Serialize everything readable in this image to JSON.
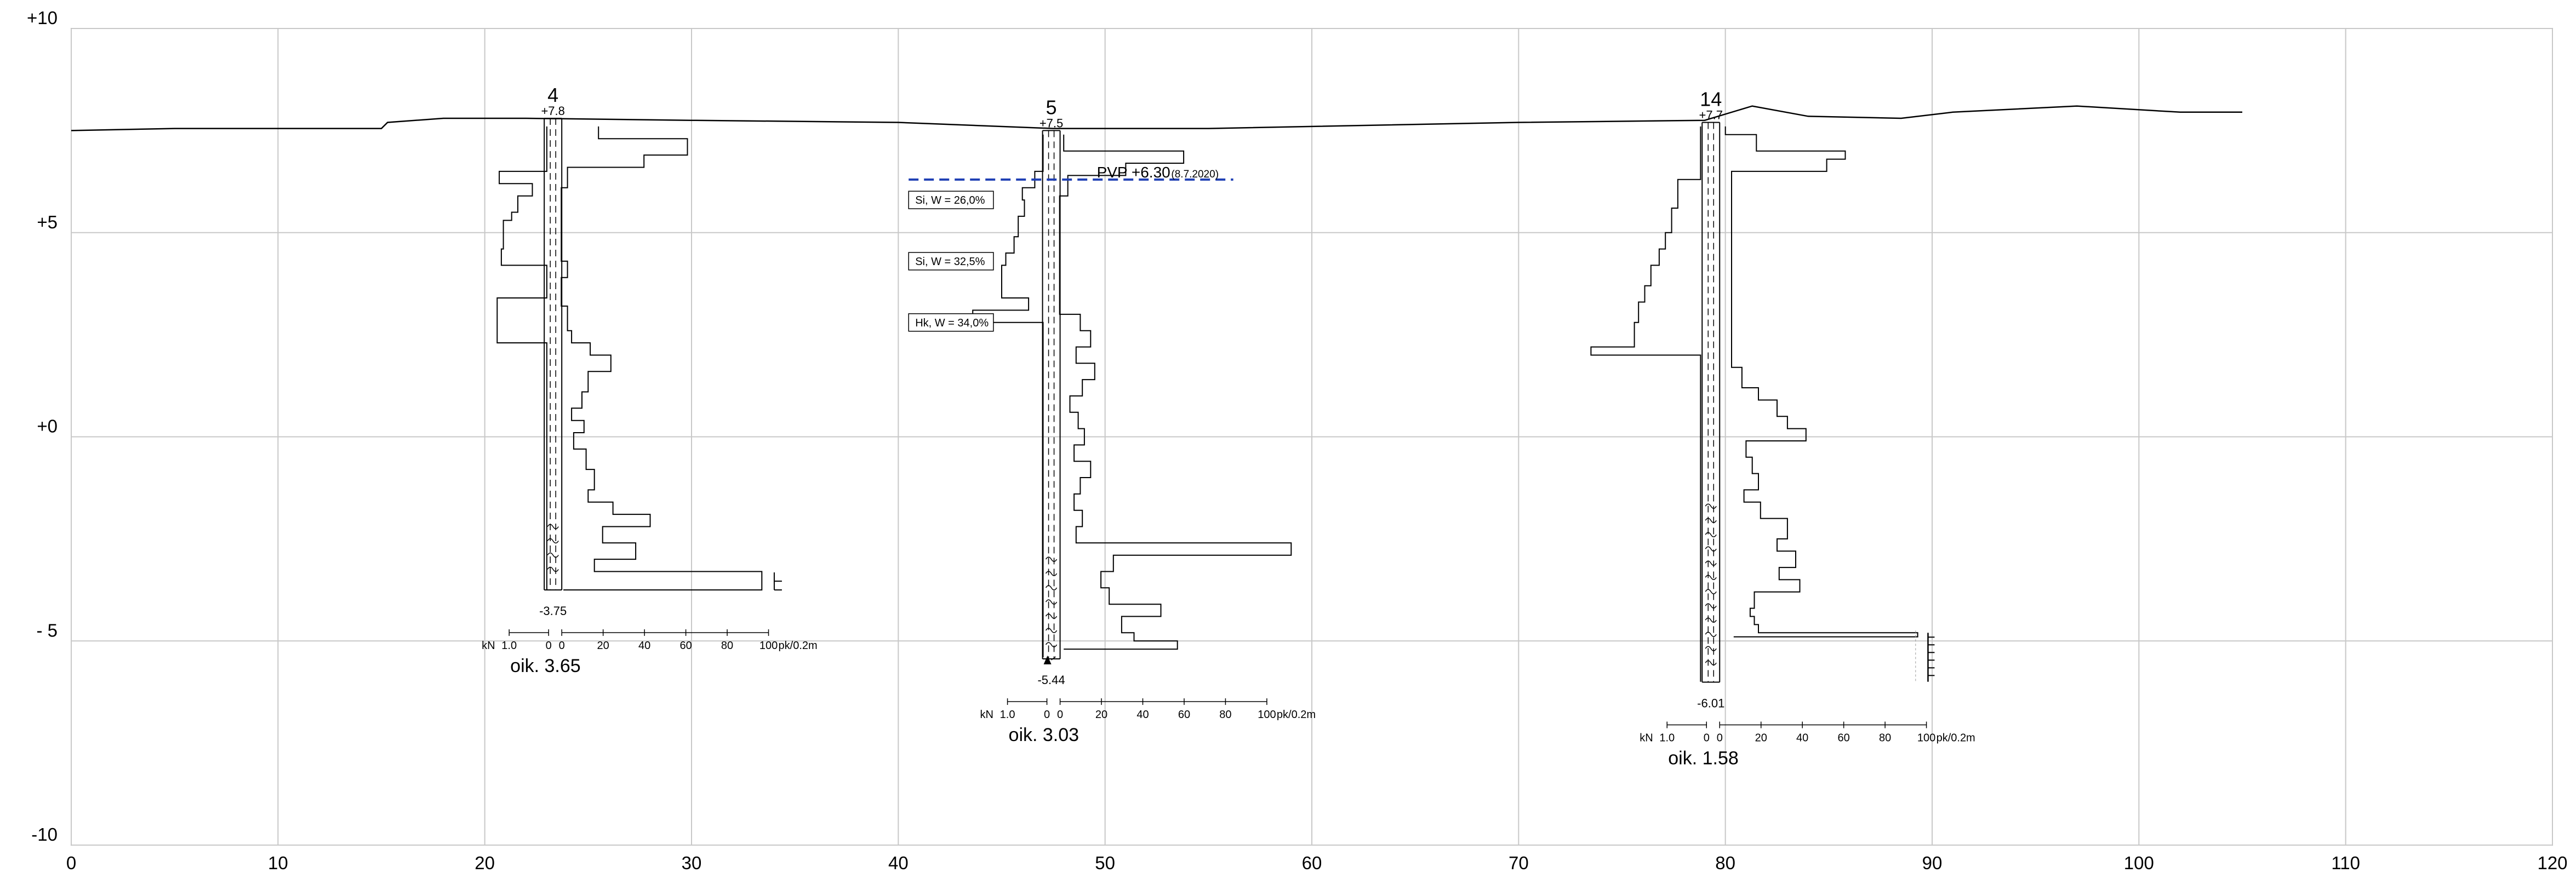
{
  "y_axis": {
    "min": -10,
    "max": 10,
    "ticks": [
      {
        "value": 10,
        "label": "+10"
      },
      {
        "value": 5,
        "label": "+5"
      },
      {
        "value": 0,
        "label": "+0"
      },
      {
        "value": -5,
        "label": "- 5"
      },
      {
        "value": -10,
        "label": "-10"
      }
    ]
  },
  "x_axis": {
    "min": 0,
    "max": 120,
    "ticks": [
      {
        "value": 0,
        "label": "0"
      },
      {
        "value": 10,
        "label": "10"
      },
      {
        "value": 20,
        "label": "20"
      },
      {
        "value": 30,
        "label": "30"
      },
      {
        "value": 40,
        "label": "40"
      },
      {
        "value": 50,
        "label": "50"
      },
      {
        "value": 60,
        "label": "60"
      },
      {
        "value": 70,
        "label": "70"
      },
      {
        "value": 80,
        "label": "80"
      },
      {
        "value": 90,
        "label": "90"
      },
      {
        "value": 100,
        "label": "100"
      },
      {
        "value": 110,
        "label": "110"
      },
      {
        "value": 120,
        "label": "120"
      }
    ]
  },
  "ground_surface": [
    [
      0,
      7.5
    ],
    [
      5,
      7.55
    ],
    [
      10,
      7.55
    ],
    [
      15,
      7.55
    ],
    [
      15.3,
      7.7
    ],
    [
      18,
      7.8
    ],
    [
      22,
      7.8
    ],
    [
      30,
      7.75
    ],
    [
      40,
      7.7
    ],
    [
      47.5,
      7.55
    ],
    [
      55,
      7.55
    ],
    [
      70,
      7.7
    ],
    [
      79,
      7.75
    ],
    [
      81.3,
      8.1
    ],
    [
      84,
      7.85
    ],
    [
      88.5,
      7.8
    ],
    [
      91,
      7.95
    ],
    [
      97,
      8.1
    ],
    [
      102,
      7.95
    ],
    [
      105,
      7.95
    ]
  ],
  "groundwater": {
    "label": "PVP +6.30",
    "date": "(8.7.2020)",
    "level": 6.3,
    "x_from": 40.5,
    "x_to": 56.2
  },
  "boreholes": [
    {
      "id": "4",
      "x": 23.3,
      "top": 7.8,
      "top_label": "+7.8",
      "bottom": -3.75,
      "bottom_label": "-3.75",
      "note": "oik. 3.65",
      "wavy_from": -2.2,
      "end_marker": "stop",
      "weight_profile": [
        [
          7.6,
          23.0
        ],
        [
          6.5,
          23.0
        ],
        [
          6.5,
          20.7
        ],
        [
          6.2,
          20.7
        ],
        [
          6.2,
          22.3
        ],
        [
          5.9,
          22.3
        ],
        [
          5.9,
          21.6
        ],
        [
          5.5,
          21.6
        ],
        [
          5.5,
          21.3
        ],
        [
          5.3,
          21.3
        ],
        [
          5.3,
          20.9
        ],
        [
          4.6,
          20.9
        ],
        [
          4.6,
          20.8
        ],
        [
          4.2,
          20.8
        ],
        [
          4.2,
          23.0
        ],
        [
          3.4,
          23.0
        ],
        [
          3.4,
          20.6
        ],
        [
          2.3,
          20.6
        ],
        [
          2.3,
          23.0
        ],
        [
          -3.75,
          23.0
        ]
      ],
      "blow_profile": [
        [
          7.6,
          25.5
        ],
        [
          7.3,
          25.5
        ],
        [
          7.3,
          29.8
        ],
        [
          6.9,
          29.8
        ],
        [
          6.9,
          27.7
        ],
        [
          6.6,
          27.7
        ],
        [
          6.6,
          24.0
        ],
        [
          6.1,
          24.0
        ],
        [
          6.1,
          23.7
        ],
        [
          4.3,
          23.7
        ],
        [
          4.3,
          24.0
        ],
        [
          3.9,
          24.0
        ],
        [
          3.9,
          23.7
        ],
        [
          3.2,
          23.7
        ],
        [
          3.2,
          24.0
        ],
        [
          2.6,
          24.0
        ],
        [
          2.6,
          24.2
        ],
        [
          2.3,
          24.2
        ],
        [
          2.3,
          25.1
        ],
        [
          2.0,
          25.1
        ],
        [
          2.0,
          26.1
        ],
        [
          1.6,
          26.1
        ],
        [
          1.6,
          25.0
        ],
        [
          1.1,
          25.0
        ],
        [
          1.1,
          24.7
        ],
        [
          0.7,
          24.7
        ],
        [
          0.7,
          24.2
        ],
        [
          0.4,
          24.2
        ],
        [
          0.4,
          24.8
        ],
        [
          0.1,
          24.8
        ],
        [
          0.1,
          24.3
        ],
        [
          -0.3,
          24.3
        ],
        [
          -0.3,
          24.9
        ],
        [
          -0.8,
          24.9
        ],
        [
          -0.8,
          25.3
        ],
        [
          -1.3,
          25.3
        ],
        [
          -1.3,
          25.0
        ],
        [
          -1.6,
          25.0
        ],
        [
          -1.6,
          26.2
        ],
        [
          -1.9,
          26.2
        ],
        [
          -1.9,
          28.0
        ],
        [
          -2.2,
          28.0
        ],
        [
          -2.2,
          25.7
        ],
        [
          -2.6,
          25.7
        ],
        [
          -2.6,
          27.3
        ],
        [
          -3.0,
          27.3
        ],
        [
          -3.0,
          25.3
        ],
        [
          -3.3,
          25.3
        ],
        [
          -3.3,
          33.4
        ],
        [
          -3.75,
          33.4
        ],
        [
          -3.75,
          23.8
        ]
      ],
      "scale": {
        "kn": "kN",
        "left_val": "1.0",
        "zero_left": "0",
        "zero_right": "0",
        "ticks": [
          "20",
          "40",
          "60",
          "80",
          "100"
        ],
        "unit": "pk/0.2m"
      }
    },
    {
      "id": "5",
      "x": 47.4,
      "top": 7.5,
      "top_label": "+7.5",
      "bottom": -5.44,
      "bottom_label": "-5.44",
      "note": "oik. 3.03",
      "wavy_from": -3.0,
      "end_marker": "triangle",
      "weight_profile": [
        [
          7.4,
          47.0
        ],
        [
          6.5,
          47.0
        ],
        [
          6.5,
          46.6
        ],
        [
          6.1,
          46.6
        ],
        [
          6.1,
          46.0
        ],
        [
          5.8,
          46.0
        ],
        [
          5.8,
          46.1
        ],
        [
          5.4,
          46.1
        ],
        [
          5.4,
          45.8
        ],
        [
          4.9,
          45.8
        ],
        [
          4.9,
          45.6
        ],
        [
          4.5,
          45.6
        ],
        [
          4.5,
          45.2
        ],
        [
          4.2,
          45.2
        ],
        [
          4.2,
          45.0
        ],
        [
          3.4,
          45.0
        ],
        [
          3.4,
          46.3
        ],
        [
          3.1,
          46.3
        ],
        [
          3.1,
          43.6
        ],
        [
          2.8,
          43.6
        ],
        [
          2.8,
          47.0
        ],
        [
          -5.4,
          47.0
        ]
      ],
      "blow_profile": [
        [
          7.4,
          48.0
        ],
        [
          7.0,
          48.0
        ],
        [
          7.0,
          53.8
        ],
        [
          6.7,
          53.8
        ],
        [
          6.7,
          51.0
        ],
        [
          6.4,
          51.0
        ],
        [
          6.4,
          48.2
        ],
        [
          5.9,
          48.2
        ],
        [
          5.9,
          47.8
        ],
        [
          3.0,
          47.8
        ],
        [
          3.0,
          48.8
        ],
        [
          2.6,
          48.8
        ],
        [
          2.6,
          49.3
        ],
        [
          2.2,
          49.3
        ],
        [
          2.2,
          48.6
        ],
        [
          1.8,
          48.6
        ],
        [
          1.8,
          49.5
        ],
        [
          1.4,
          49.5
        ],
        [
          1.4,
          48.9
        ],
        [
          1.0,
          48.9
        ],
        [
          1.0,
          48.3
        ],
        [
          0.6,
          48.3
        ],
        [
          0.6,
          48.7
        ],
        [
          0.2,
          48.7
        ],
        [
          0.2,
          49.0
        ],
        [
          -0.2,
          49.0
        ],
        [
          -0.2,
          48.5
        ],
        [
          -0.6,
          48.5
        ],
        [
          -0.6,
          49.3
        ],
        [
          -1.0,
          49.3
        ],
        [
          -1.0,
          48.8
        ],
        [
          -1.4,
          48.8
        ],
        [
          -1.4,
          48.5
        ],
        [
          -1.8,
          48.5
        ],
        [
          -1.8,
          48.9
        ],
        [
          -2.2,
          48.9
        ],
        [
          -2.2,
          48.6
        ],
        [
          -2.6,
          48.6
        ],
        [
          -2.6,
          59.0
        ],
        [
          -2.9,
          59.0
        ],
        [
          -2.9,
          50.4
        ],
        [
          -3.3,
          50.4
        ],
        [
          -3.3,
          49.8
        ],
        [
          -3.7,
          49.8
        ],
        [
          -3.7,
          50.2
        ],
        [
          -4.1,
          50.2
        ],
        [
          -4.1,
          52.7
        ],
        [
          -4.4,
          52.7
        ],
        [
          -4.4,
          50.8
        ],
        [
          -4.8,
          50.8
        ],
        [
          -4.8,
          51.4
        ],
        [
          -5.0,
          51.4
        ],
        [
          -5.0,
          53.5
        ],
        [
          -5.2,
          53.5
        ],
        [
          -5.2,
          48.0
        ]
      ],
      "labels": [
        {
          "text": "Si, W = 26,0%",
          "level": 5.8,
          "x_left": 40.5,
          "x_right": 44.6
        },
        {
          "text": "Si, W = 32,5%",
          "level": 4.3,
          "x_left": 40.5,
          "x_right": 44.6
        },
        {
          "text": "Hk, W = 34,0%",
          "level": 2.8,
          "x_left": 40.5,
          "x_right": 44.6
        }
      ],
      "scale": {
        "kn": "kN",
        "left_val": "1.0",
        "zero_left": "0",
        "zero_right": "0",
        "ticks": [
          "20",
          "40",
          "60",
          "80",
          "100"
        ],
        "unit": "pk/0.2m"
      }
    },
    {
      "id": "14",
      "x": 79.3,
      "top": 7.7,
      "top_label": "+7.7",
      "bottom": -6.01,
      "bottom_label": "-6.01",
      "note": "oik. 1.58",
      "wavy_from": -1.7,
      "end_marker": "stop",
      "weight_profile": [
        [
          7.6,
          78.8
        ],
        [
          6.3,
          78.8
        ],
        [
          6.3,
          77.7
        ],
        [
          5.6,
          77.7
        ],
        [
          5.6,
          77.4
        ],
        [
          5.0,
          77.4
        ],
        [
          5.0,
          77.1
        ],
        [
          4.6,
          77.1
        ],
        [
          4.6,
          76.8
        ],
        [
          4.2,
          76.8
        ],
        [
          4.2,
          76.4
        ],
        [
          3.7,
          76.4
        ],
        [
          3.7,
          76.1
        ],
        [
          3.3,
          76.1
        ],
        [
          3.3,
          75.8
        ],
        [
          2.8,
          75.8
        ],
        [
          2.8,
          75.6
        ],
        [
          2.2,
          75.6
        ],
        [
          2.2,
          73.5
        ],
        [
          2.0,
          73.5
        ],
        [
          2.0,
          78.8
        ],
        [
          -6.0,
          78.8
        ]
      ],
      "blow_profile": [
        [
          7.6,
          80.0
        ],
        [
          7.4,
          80.0
        ],
        [
          7.4,
          81.5
        ],
        [
          7.0,
          81.5
        ],
        [
          7.0,
          85.8
        ],
        [
          6.8,
          85.8
        ],
        [
          6.8,
          84.9
        ],
        [
          6.5,
          84.9
        ],
        [
          6.5,
          80.3
        ],
        [
          1.7,
          80.3
        ],
        [
          1.7,
          80.8
        ],
        [
          1.2,
          80.8
        ],
        [
          1.2,
          81.6
        ],
        [
          0.9,
          81.6
        ],
        [
          0.9,
          82.5
        ],
        [
          0.5,
          82.5
        ],
        [
          0.5,
          83.0
        ],
        [
          0.2,
          83.0
        ],
        [
          0.2,
          83.9
        ],
        [
          -0.1,
          83.9
        ],
        [
          -0.1,
          81.0
        ],
        [
          -0.5,
          81.0
        ],
        [
          -0.5,
          81.3
        ],
        [
          -0.9,
          81.3
        ],
        [
          -0.9,
          81.6
        ],
        [
          -1.3,
          81.6
        ],
        [
          -1.3,
          80.9
        ],
        [
          -1.6,
          80.9
        ],
        [
          -1.6,
          81.7
        ],
        [
          -2.0,
          81.7
        ],
        [
          -2.0,
          83.0
        ],
        [
          -2.5,
          83.0
        ],
        [
          -2.5,
          82.5
        ],
        [
          -2.8,
          82.5
        ],
        [
          -2.8,
          83.4
        ],
        [
          -3.2,
          83.4
        ],
        [
          -3.2,
          82.6
        ],
        [
          -3.5,
          82.6
        ],
        [
          -3.5,
          83.6
        ],
        [
          -3.8,
          83.6
        ],
        [
          -3.8,
          81.4
        ],
        [
          -4.2,
          81.4
        ],
        [
          -4.2,
          81.2
        ],
        [
          -4.4,
          81.2
        ],
        [
          -4.4,
          81.4
        ],
        [
          -4.6,
          81.4
        ],
        [
          -4.6,
          81.6
        ],
        [
          -4.8,
          81.6
        ],
        [
          -4.8,
          89.3
        ],
        [
          -4.9,
          89.3
        ],
        [
          -4.9,
          80.4
        ]
      ],
      "scale": {
        "kn": "kN",
        "left_val": "1.0",
        "zero_left": "0",
        "zero_right": "0",
        "ticks": [
          "20",
          "40",
          "60",
          "80",
          "100"
        ],
        "unit": "pk/0.2m"
      }
    }
  ]
}
